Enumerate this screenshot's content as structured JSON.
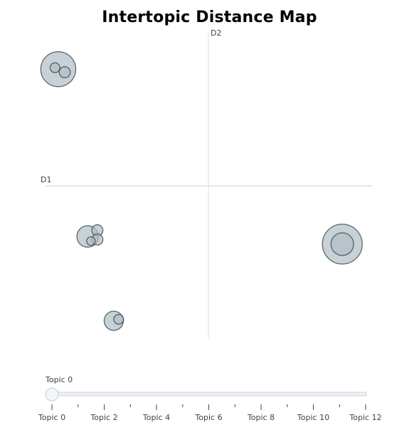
{
  "chart_data": {
    "type": "scatter",
    "title": "Intertopic Distance Map",
    "xlabel": "D1",
    "ylabel": "D2",
    "xlim": [
      -10,
      10
    ],
    "ylim": [
      -10,
      10
    ],
    "grid": false,
    "topics": [
      {
        "topic": 0,
        "x": -9.2,
        "y": 7.6,
        "size": 1.0
      },
      {
        "topic": 1,
        "x": -9.4,
        "y": 7.7,
        "size": 0.08
      },
      {
        "topic": 2,
        "x": -8.8,
        "y": 7.4,
        "size": 0.1
      },
      {
        "topic": 3,
        "x": -7.4,
        "y": -3.3,
        "size": 0.38
      },
      {
        "topic": 4,
        "x": -6.8,
        "y": -2.9,
        "size": 0.1
      },
      {
        "topic": 5,
        "x": -6.8,
        "y": -3.5,
        "size": 0.1
      },
      {
        "topic": 6,
        "x": -7.2,
        "y": -3.6,
        "size": 0.06
      },
      {
        "topic": 7,
        "x": -5.8,
        "y": -8.8,
        "size": 0.3
      },
      {
        "topic": 8,
        "x": -5.5,
        "y": -8.7,
        "size": 0.08
      },
      {
        "topic": 9,
        "x": 8.2,
        "y": -3.8,
        "size": 1.3
      },
      {
        "topic": 10,
        "x": 8.2,
        "y": -3.8,
        "size": 0.42
      }
    ]
  },
  "slider": {
    "current_label": "Topic 0",
    "current_value": 0,
    "min": 0,
    "max": 12,
    "tick_labels": [
      "Topic 0",
      "Topic 2",
      "Topic 4",
      "Topic 6",
      "Topic 8",
      "Topic 10",
      "Topic 12"
    ]
  },
  "colors": {
    "bubble_fill": "#b0bec5",
    "bubble_stroke": "#37474f",
    "axis_line": "#d6d6d6",
    "slider_track": "#eef2f7",
    "slider_border": "#c8d0da"
  }
}
